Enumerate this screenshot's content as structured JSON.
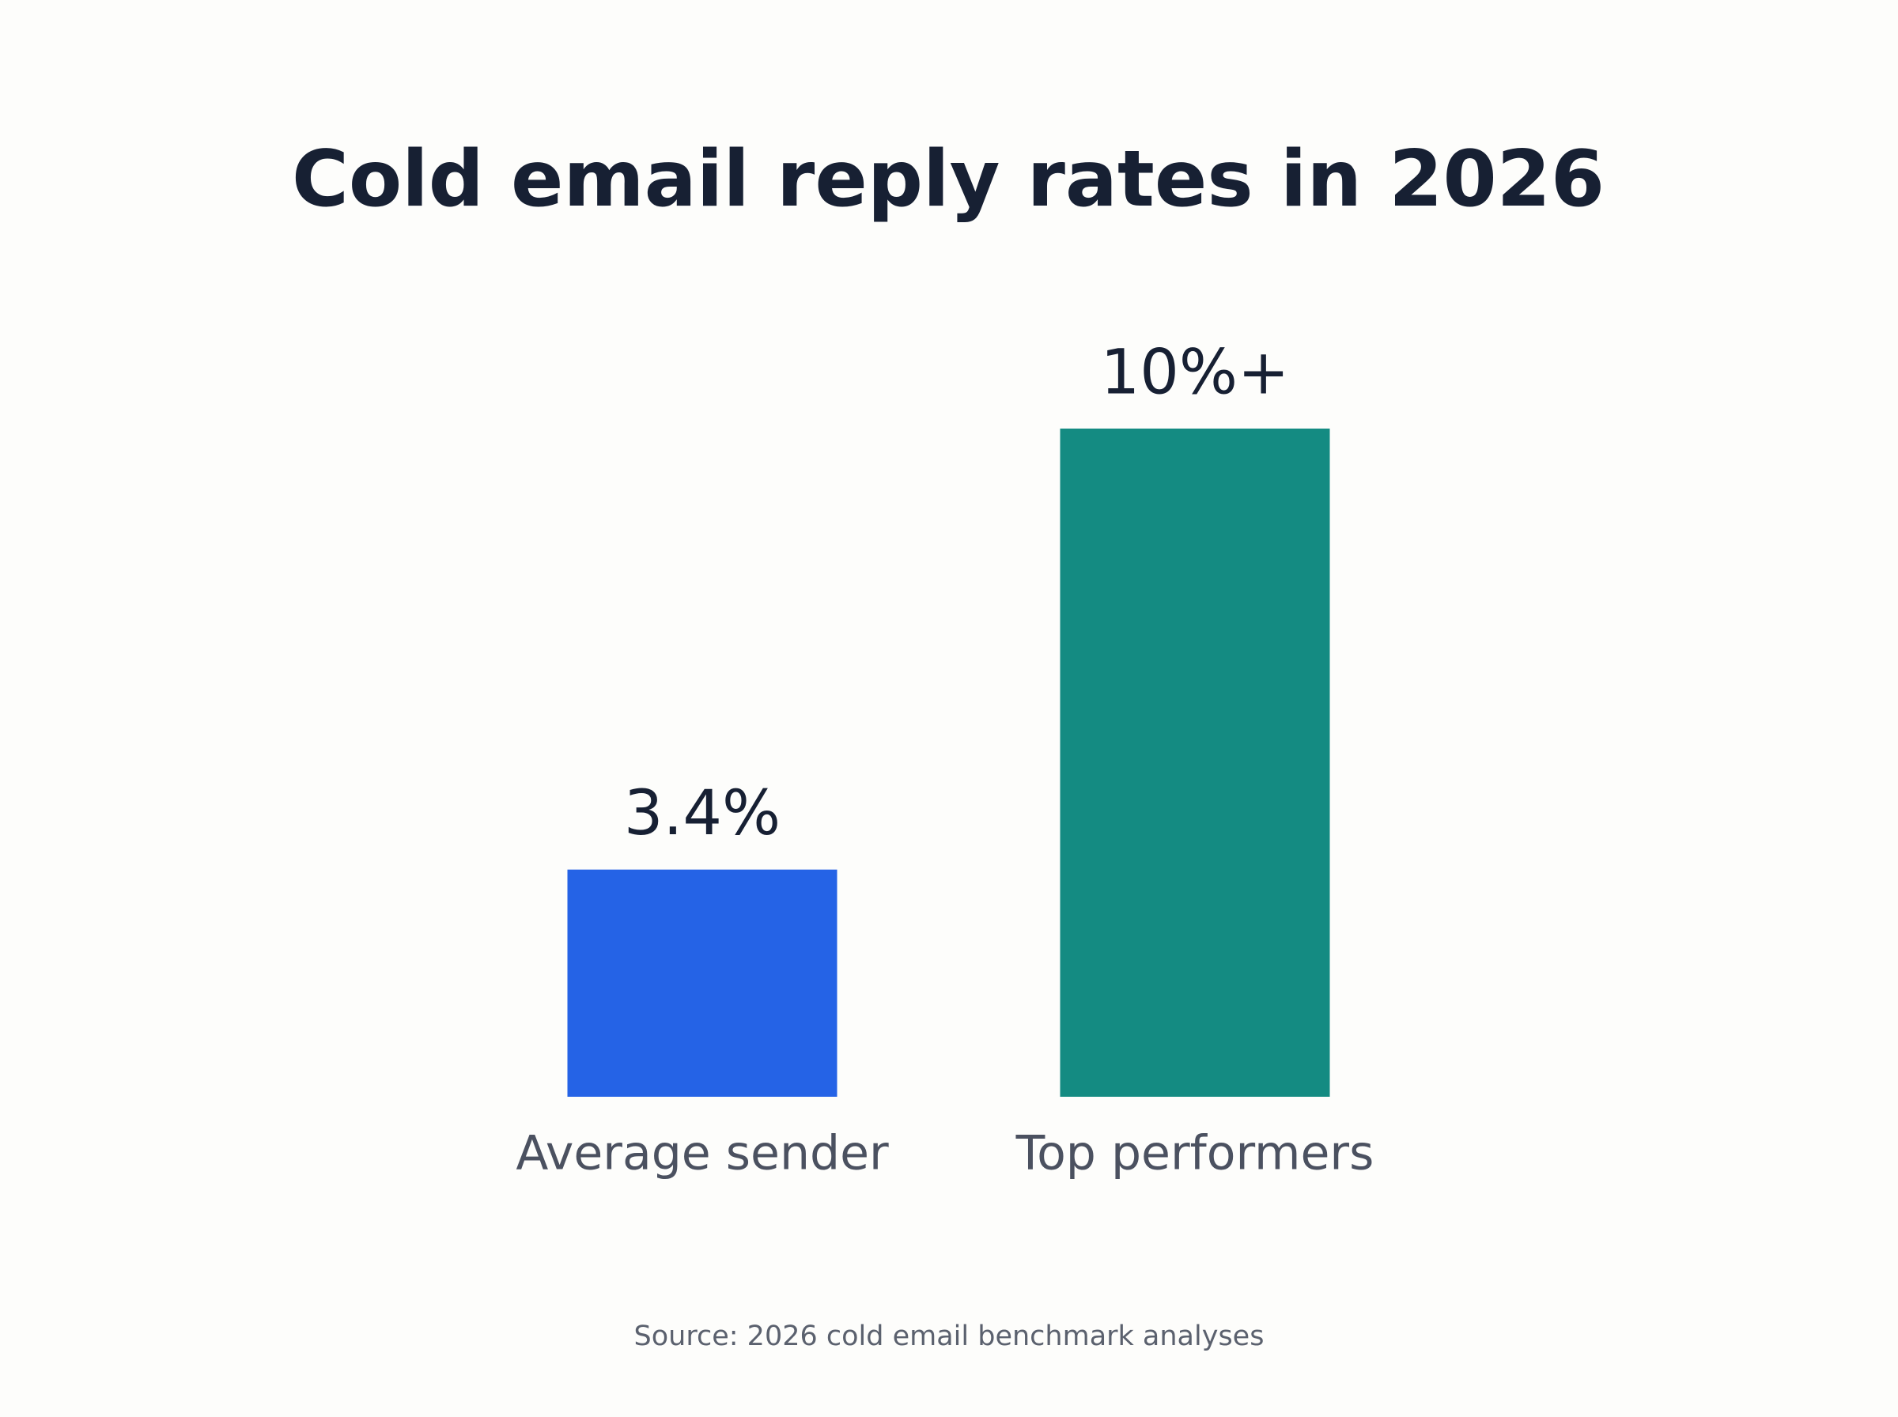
{
  "chart_data": {
    "type": "bar",
    "title": "Cold email reply rates in 2026",
    "categories": [
      "Average sender",
      "Top performers"
    ],
    "values": [
      3.4,
      10
    ],
    "value_labels": [
      "3.4%",
      "10%+"
    ],
    "colors": [
      "#2563e6",
      "#148b82"
    ],
    "source": "Source: 2026 cold email benchmark analyses"
  }
}
